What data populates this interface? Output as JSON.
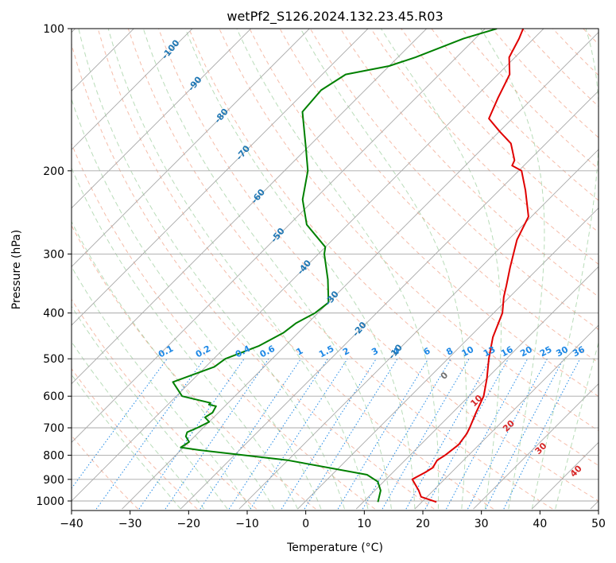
{
  "chart_data": {
    "type": "line",
    "title": "wetPf2_S126.2024.132.23.45.R03",
    "xlabel": "Temperature (°C)",
    "ylabel": "Pressure (hPa)",
    "xlim": [
      -40,
      50
    ],
    "ylim": [
      1030,
      100
    ],
    "yscale": "log",
    "skew": true,
    "grid": true,
    "xticks": [
      -40,
      -30,
      -20,
      -10,
      0,
      10,
      20,
      30,
      40,
      50
    ],
    "yticks": [
      100,
      200,
      300,
      400,
      500,
      600,
      700,
      800,
      900,
      1000
    ],
    "series": [
      {
        "color": "#e00000",
        "x": [
          22.5,
          19.0,
          17.5,
          14.5,
          15.5,
          16.0,
          15.5,
          16.0,
          16.5,
          16.0,
          15.5,
          14.0,
          12.5,
          10.0,
          7.0,
          4.0,
          1.5,
          -1.0,
          -2.5,
          -5.0,
          -8.5,
          -10.5,
          -15.5,
          -19.5,
          -22.0,
          -22.5,
          -26.0,
          -30.0,
          -34.0,
          -36.0,
          -38.0,
          -41.0,
          -42.5,
          -43.5
        ],
        "y": [
          1005,
          980,
          950,
          900,
          870,
          850,
          820,
          800,
          760,
          720,
          700,
          650,
          600,
          550,
          500,
          450,
          400,
          370,
          350,
          320,
          280,
          250,
          220,
          200,
          195,
          190,
          175,
          165,
          155,
          140,
          125,
          115,
          105,
          100
        ]
      },
      {
        "color": "#008000",
        "x": [
          12.5,
          11.0,
          9.0,
          6.0,
          -10.0,
          -27.0,
          -30.5,
          -30.0,
          -31.5,
          -32.0,
          -31.0,
          -30.0,
          -31.5,
          -31.0,
          -31.5,
          -33.0,
          -33.0,
          -39.0,
          -43.0,
          -38.5,
          -38.0,
          -34.5,
          -32.5,
          -32.0,
          -30.5,
          -30.0,
          -34.0,
          -39.0,
          -40.0,
          -47.0,
          -52.0,
          -56.0,
          -60.0,
          -67.0,
          -67.5,
          -66.0,
          -60.0,
          -57.0,
          -52.0,
          -48.0
        ],
        "y": [
          1005,
          950,
          910,
          880,
          820,
          780,
          770,
          750,
          730,
          715,
          700,
          680,
          665,
          650,
          630,
          625,
          620,
          600,
          560,
          520,
          500,
          470,
          440,
          420,
          400,
          380,
          340,
          300,
          290,
          260,
          230,
          200,
          180,
          150,
          135,
          125,
          120,
          115,
          105,
          100
        ]
      }
    ],
    "mixing_ratio_labels": [
      "0.1",
      "0.2",
      "0.4",
      "0.6",
      "1",
      "1.5",
      "2",
      "3",
      "4",
      "6",
      "8",
      "10",
      "13",
      "16",
      "20",
      "25",
      "30",
      "36"
    ],
    "dry_adiabat_labels": [
      "-100",
      "-90",
      "-80",
      "-70",
      "-60",
      "-50",
      "-40",
      "-30",
      "-20",
      "-10"
    ],
    "moist_adiabat_labels": [
      "0",
      "10",
      "20",
      "30",
      "40"
    ]
  }
}
